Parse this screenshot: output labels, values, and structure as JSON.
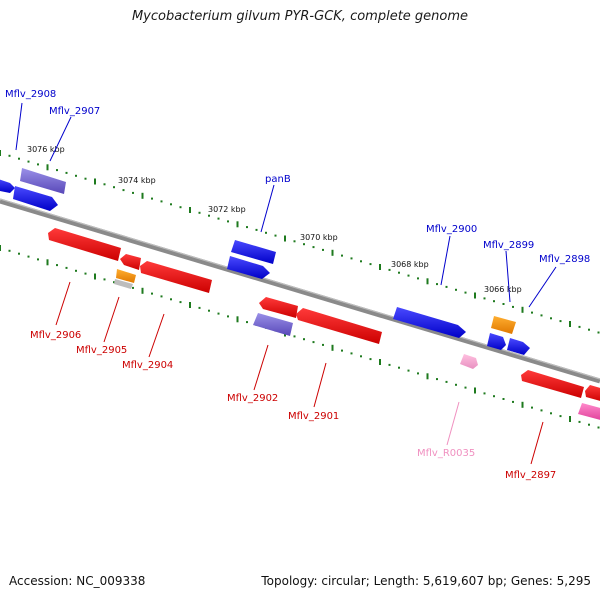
{
  "title": "Mycobacterium gilvum PYR-GCK, complete genome",
  "footer": {
    "accession": "Accession: NC_009338",
    "stats": "Topology: circular; Length: 5,619,607 bp; Genes: 5,295"
  },
  "kbp_labels": [
    "3076 kbp",
    "3074 kbp",
    "3072 kbp",
    "3070 kbp",
    "3068 kbp",
    "3066 kbp"
  ],
  "gene_labels": {
    "forward": [
      "Mflv_2908",
      "Mflv_2907",
      "panB",
      "Mflv_2900",
      "Mflv_2899",
      "Mflv_2898"
    ],
    "reverse": [
      "Mflv_2906",
      "Mflv_2905",
      "Mflv_2904",
      "Mflv_2902",
      "Mflv_2901",
      "Mflv_R0035",
      "Mflv_2897"
    ]
  },
  "colors": {
    "forward_label": "#0000cc",
    "reverse_label": "#cc0000",
    "rna_label": "#f08fc0",
    "cds_forward": "#1a1aee",
    "cds_reverse": "#ee1111",
    "other_gene": "#6a5acd",
    "rna": "#f06eb0",
    "pseudo": "#ff8c00",
    "tick": "#1e7a1e",
    "backbone": "#7a7a7a"
  }
}
